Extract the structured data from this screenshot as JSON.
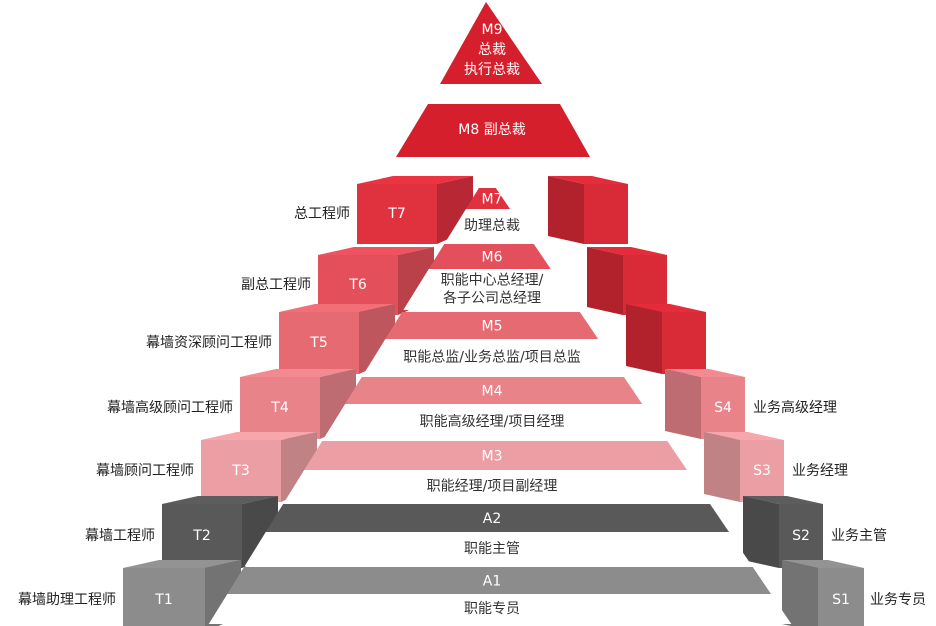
{
  "apex": {
    "code": "M9",
    "line1": "总裁",
    "line2": "执行总裁",
    "color": "#d61f2c"
  },
  "m8": {
    "code": "M8",
    "title": "副总裁",
    "color": "#d61f2c"
  },
  "levels": [
    {
      "code": "M7",
      "title_lines": [
        "助理总裁"
      ],
      "t_code": "T7",
      "t_label": "总工程师",
      "s_code": "",
      "s_label": "",
      "color": "#e0313f"
    },
    {
      "code": "M6",
      "title_lines": [
        "职能中心总经理/",
        "各子公司总经理"
      ],
      "t_code": "T6",
      "t_label": "副总工程师",
      "s_code": "",
      "s_label": "",
      "color": "#e34f5a"
    },
    {
      "code": "M5",
      "title_lines": [
        "职能总监/业务总监/项目总监"
      ],
      "t_code": "T5",
      "t_label": "幕墙资深顾问工程师",
      "s_code": "",
      "s_label": "",
      "color": "#e66a72"
    },
    {
      "code": "M4",
      "title_lines": [
        "职能高级经理/项目经理"
      ],
      "t_code": "T4",
      "t_label": "幕墙高级顾问工程师",
      "s_code": "S4",
      "s_label": "业务高级经理",
      "color": "#e8838a"
    },
    {
      "code": "M3",
      "title_lines": [
        "职能经理/项目副经理"
      ],
      "t_code": "T3",
      "t_label": "幕墙顾问工程师",
      "s_code": "S3",
      "s_label": "业务经理",
      "color": "#eb9ea3"
    },
    {
      "code": "A2",
      "title_lines": [
        "职能主管"
      ],
      "t_code": "T2",
      "t_label": "幕墙工程师",
      "s_code": "S2",
      "s_label": "业务主管",
      "color": "#595959"
    },
    {
      "code": "A1",
      "title_lines": [
        "职能专员"
      ],
      "t_code": "T1",
      "t_label": "幕墙助理工程师",
      "s_code": "S1",
      "s_label": "业务专员",
      "color": "#8c8c8c"
    }
  ],
  "right_red_color": "#d92a37"
}
